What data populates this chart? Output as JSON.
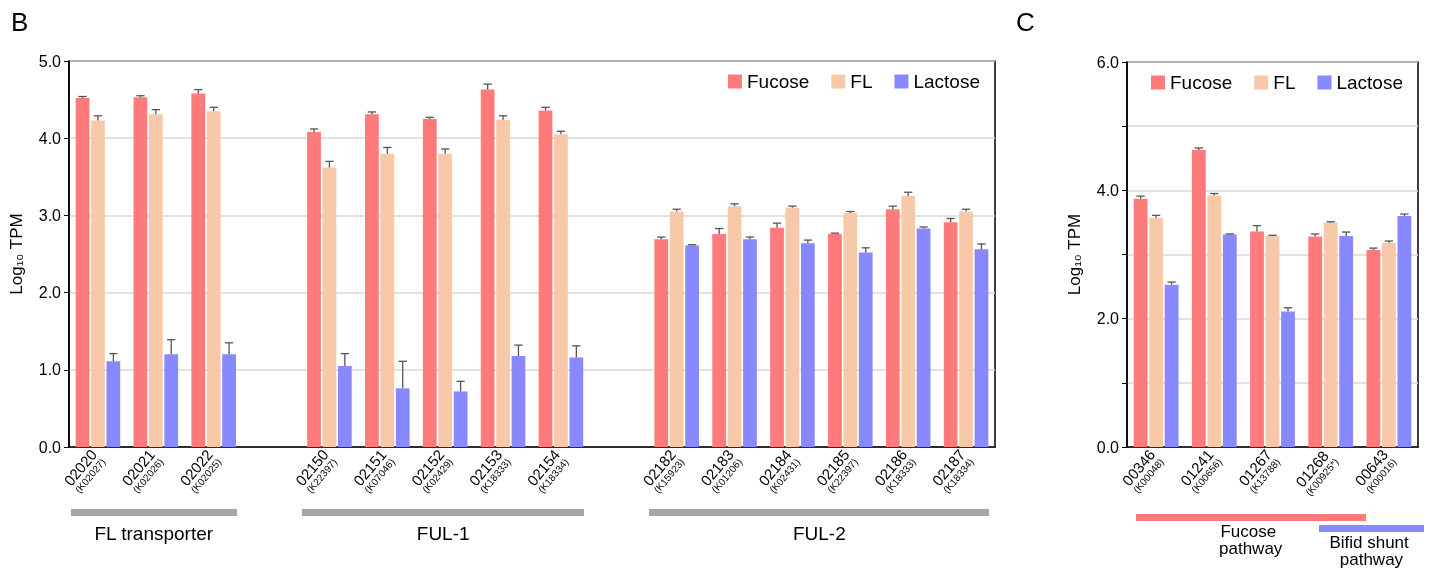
{
  "chart_data": [
    {
      "type": "bar",
      "title": "B",
      "ylabel": "Log₁₀ TPM",
      "categories": [
        "02020 (K02027)",
        "02021 (K02026)",
        "02022 (K02025)",
        null,
        "02150 (K22397)",
        "02151 (K07046)",
        "02152 (K02429)",
        "02153 (K18333)",
        "02154 (K18334)",
        null,
        "02182 (K15923)",
        "02183 (K01206)",
        "02184 (K02431)",
        "02185 (K22397)",
        "02186 (K18333)",
        "02187 (K18334)"
      ],
      "series": [
        {
          "name": "Fucose",
          "color": "#ff7b7b",
          "values": [
            4.52,
            4.53,
            4.58,
            null,
            4.08,
            4.31,
            4.25,
            4.63,
            4.36,
            null,
            2.69,
            2.76,
            2.84,
            2.76,
            3.08,
            2.91
          ],
          "errors": [
            0.02,
            0.02,
            0.05,
            null,
            0.04,
            0.03,
            0.02,
            0.07,
            0.04,
            null,
            0.03,
            0.07,
            0.06,
            0.01,
            0.04,
            0.05
          ]
        },
        {
          "name": "FL",
          "color": "#f7c9a9",
          "values": [
            4.23,
            4.31,
            4.35,
            null,
            3.62,
            3.8,
            3.8,
            4.24,
            4.05,
            null,
            3.05,
            3.12,
            3.1,
            3.03,
            3.25,
            3.05
          ],
          "errors": [
            0.06,
            0.06,
            0.05,
            null,
            0.08,
            0.08,
            0.06,
            0.05,
            0.04,
            null,
            0.03,
            0.03,
            0.02,
            0.02,
            0.05,
            0.03
          ]
        },
        {
          "name": "Lactose",
          "color": "#8888ff",
          "values": [
            1.11,
            1.2,
            1.2,
            null,
            1.05,
            0.76,
            0.72,
            1.18,
            1.16,
            null,
            2.61,
            2.69,
            2.64,
            2.52,
            2.83,
            2.56
          ],
          "errors": [
            0.1,
            0.19,
            0.15,
            null,
            0.16,
            0.35,
            0.13,
            0.14,
            0.15,
            null,
            0.01,
            0.03,
            0.04,
            0.06,
            0.02,
            0.07
          ]
        }
      ],
      "ylim": [
        0,
        5
      ],
      "yticks": [
        {
          "value": 0,
          "label": "0.0"
        },
        {
          "value": 1,
          "label": "1.0"
        },
        {
          "value": 2,
          "label": "2.0"
        },
        {
          "value": 3,
          "label": "3.0"
        },
        {
          "value": 4,
          "label": "4.0"
        },
        {
          "value": 5,
          "label": "5.0"
        }
      ],
      "grid": "y",
      "legend": "top right",
      "annotations": [
        "FL transporter",
        "FUL-1",
        "FUL-2"
      ]
    },
    {
      "type": "bar",
      "title": "C",
      "ylabel": "Log₁₀ TPM",
      "categories": [
        "00346 (K00048)",
        "01241 (K00656)",
        "01267 (K13788)",
        "01268 (K00925*)",
        "00643 (K00016)"
      ],
      "series": [
        {
          "name": "Fucose",
          "color": "#ff7b7b",
          "values": [
            3.87,
            4.63,
            3.36,
            3.28,
            3.07
          ],
          "errors": [
            0.04,
            0.03,
            0.09,
            0.04,
            0.03
          ]
        },
        {
          "name": "FL",
          "color": "#f7c9a9",
          "values": [
            3.57,
            3.92,
            3.29,
            3.5,
            3.18
          ],
          "errors": [
            0.04,
            0.03,
            0.01,
            0.01,
            0.03
          ]
        },
        {
          "name": "Lactose",
          "color": "#8888ff",
          "values": [
            2.53,
            3.31,
            2.11,
            3.29,
            3.6
          ],
          "errors": [
            0.04,
            0.01,
            0.06,
            0.06,
            0.03
          ]
        }
      ],
      "ylim": [
        0,
        6
      ],
      "yticks": [
        {
          "value": 0,
          "label": "0.0"
        },
        {
          "value": 1,
          "label": null
        },
        {
          "value": 2,
          "label": "2.0"
        },
        {
          "value": 3,
          "label": null
        },
        {
          "value": 4,
          "label": "4.0"
        },
        {
          "value": 5,
          "label": null
        },
        {
          "value": 6,
          "label": "6.0"
        }
      ],
      "grid": "y",
      "legend": "top right",
      "annotations": [
        "Fucose pathway",
        "Bifid shunt pathway"
      ]
    }
  ]
}
